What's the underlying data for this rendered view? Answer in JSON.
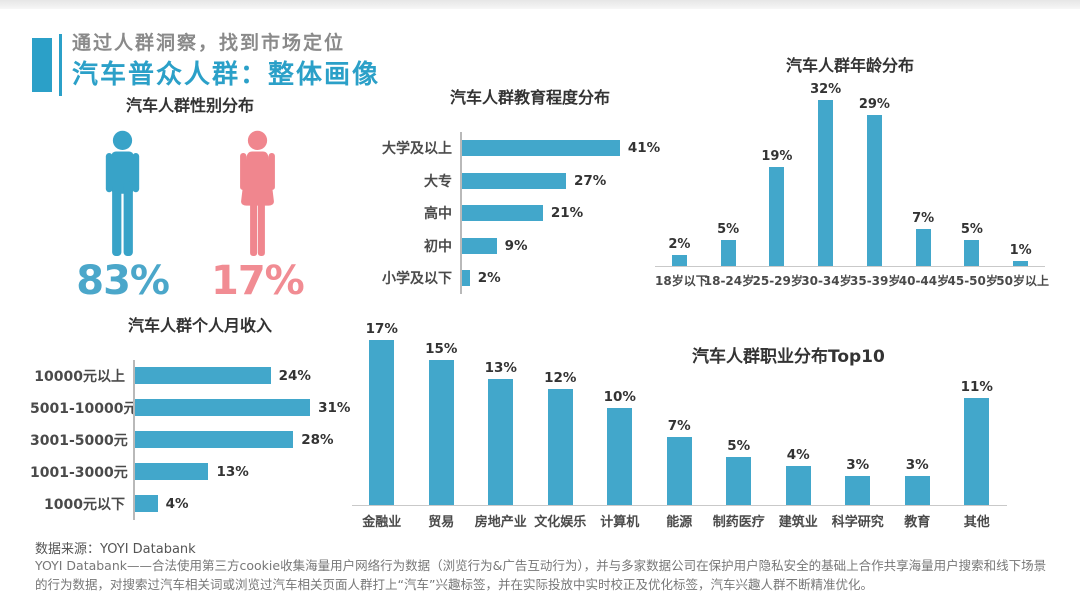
{
  "header": {
    "subtitle": "通过人群洞察，找到市场定位",
    "title": "汽车普众人群：整体画像"
  },
  "colors": {
    "accent_blue": "#2BA0C8",
    "bar_blue": "#42A7CB",
    "male_blue": "#38A3C8",
    "female_pink": "#F0868E",
    "male_value_text": "#4BA7CA",
    "female_value_text": "#F18C93"
  },
  "chart_data": [
    {
      "id": "gender",
      "type": "pictogram",
      "title": "汽车人群性别分布",
      "series": [
        {
          "name": "male",
          "icon": "male-icon",
          "value": 83,
          "label": "83%",
          "color": "#38A3C8"
        },
        {
          "name": "female",
          "icon": "female-icon",
          "value": 17,
          "label": "17%",
          "color": "#F0868E"
        }
      ]
    },
    {
      "id": "education",
      "type": "bar",
      "orientation": "horizontal",
      "title": "汽车人群教育程度分布",
      "categories": [
        "大学及以上",
        "大专",
        "高中",
        "初中",
        "小学及以下"
      ],
      "values": [
        41,
        27,
        21,
        9,
        2
      ],
      "unit": "%",
      "xlim": [
        0,
        45
      ],
      "grid": false
    },
    {
      "id": "age",
      "type": "bar",
      "orientation": "vertical",
      "title": "汽车人群年龄分布",
      "categories": [
        "18岁以下",
        "18-24岁",
        "25-29岁",
        "30-34岁",
        "35-39岁",
        "40-44岁",
        "45-50岁",
        "50岁以上"
      ],
      "values": [
        2,
        5,
        19,
        32,
        29,
        7,
        5,
        1
      ],
      "unit": "%",
      "ylim": [
        0,
        35
      ],
      "grid": false
    },
    {
      "id": "income",
      "type": "bar",
      "orientation": "horizontal",
      "title": "汽车人群个人月收入",
      "categories": [
        "10000元以上",
        "5001-10000元",
        "3001-5000元",
        "1001-3000元",
        "1000元以下"
      ],
      "values": [
        24,
        31,
        28,
        13,
        4
      ],
      "unit": "%",
      "xlim": [
        0,
        35
      ],
      "grid": false
    },
    {
      "id": "occupation",
      "type": "bar",
      "orientation": "vertical",
      "title": "汽车人群职业分布Top10",
      "categories": [
        "金融业",
        "贸易",
        "房地产业",
        "文化娱乐",
        "计算机",
        "能源",
        "制药医疗",
        "建筑业",
        "科学研究",
        "教育",
        "其他"
      ],
      "values": [
        17,
        15,
        13,
        12,
        10,
        7,
        5,
        4,
        3,
        3,
        11
      ],
      "unit": "%",
      "ylim": [
        0,
        19
      ],
      "grid": false
    }
  ],
  "footer": {
    "source": "数据来源：YOYI Databank",
    "description": "YOYI Databank——合法使用第三方cookie收集海量用户网络行为数据（浏览行为&广告互动行为），并与多家数据公司在保护用户隐私安全的基础上合作共享海量用户搜索和线下场景的行为数据，对搜索过汽车相关词或浏览过汽车相关页面人群打上“汽车”兴趣标签，并在实际投放中实时校正及优化标签，汽车兴趣人群不断精准优化。"
  }
}
